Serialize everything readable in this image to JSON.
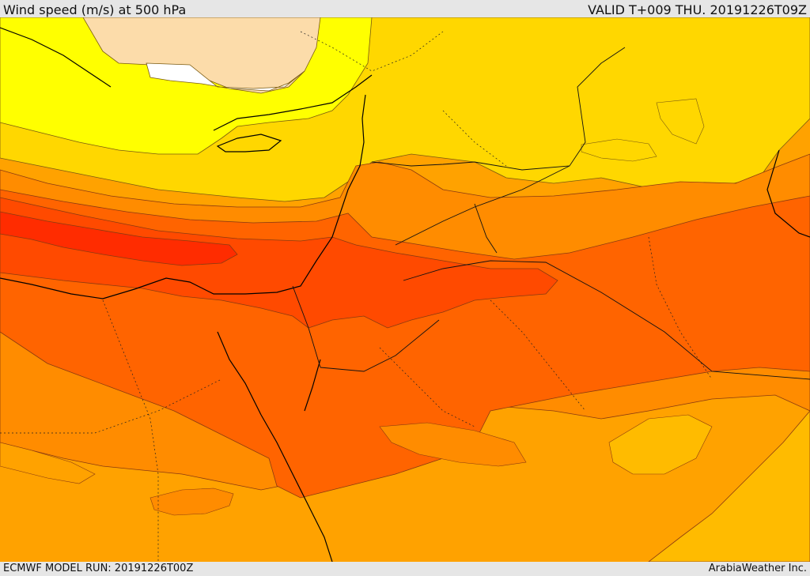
{
  "header": {
    "title": "Wind speed (m/s) at 500 hPa",
    "valid": "VALID T+009 THU. 20191226T09Z"
  },
  "footer": {
    "run": "ECMWF MODEL RUN: 20191226T00Z",
    "brand": "ArabiaWeather Inc."
  },
  "map": {
    "parameter": "Wind speed",
    "units": "m/s",
    "level": "500 hPa",
    "palette": {
      "calm_white": "#ffffff",
      "light_beige": "#fcdcaa",
      "yellow": "#ffff00",
      "yellow_orange": "#ffd700",
      "orange_light": "#ffbb00",
      "orange": "#ffa200",
      "dark_orange": "#ff8c00",
      "red_orange": "#ff6400",
      "orange_red": "#ff4a00",
      "red": "#ff2c00"
    }
  }
}
